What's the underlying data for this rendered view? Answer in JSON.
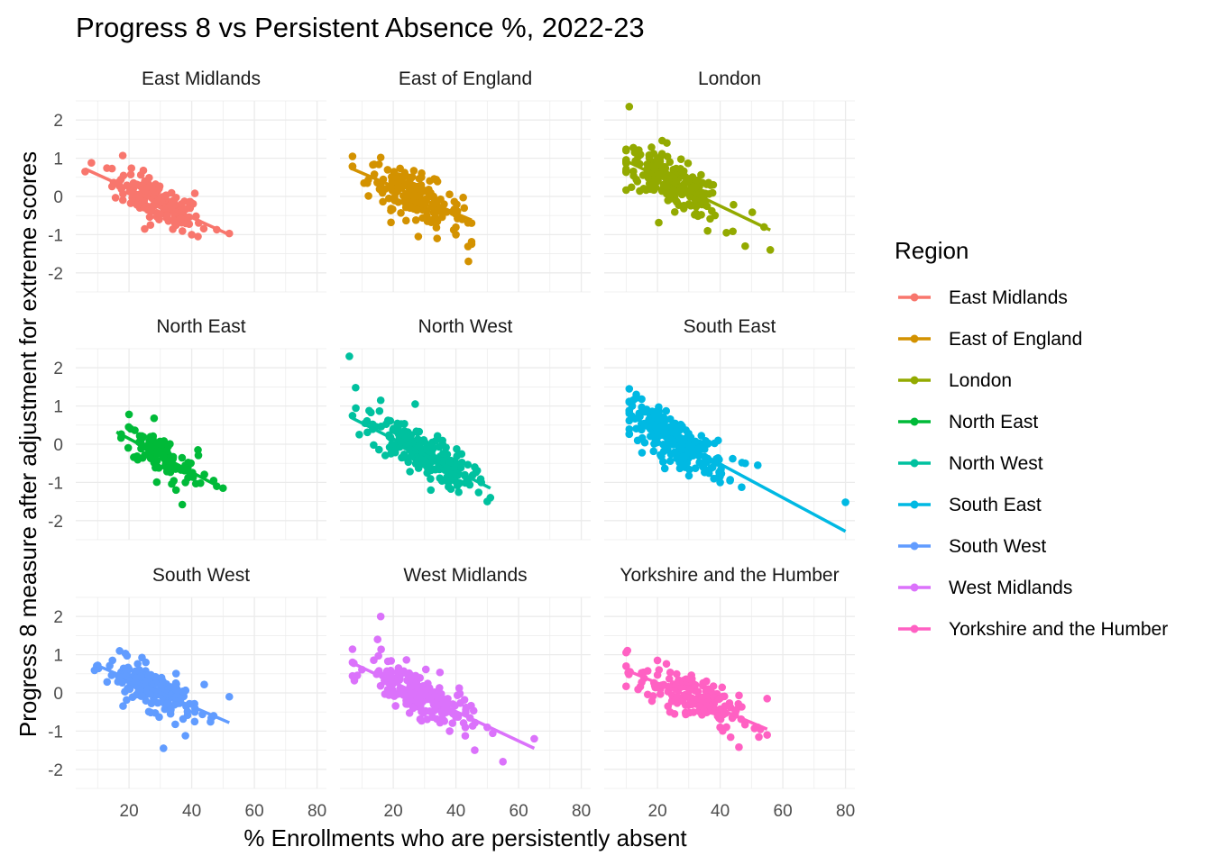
{
  "chart_data": {
    "type": "scatter",
    "title": "Progress 8 vs Persistent Absence %, 2022-23",
    "xlabel": "% Enrollments who are persistently absent",
    "ylabel": "Progress 8 measure after adjustment for extreme scores",
    "xlim": [
      3,
      83
    ],
    "ylim": [
      -2.5,
      2.5
    ],
    "x_ticks": [
      20,
      40,
      60,
      80
    ],
    "y_ticks": [
      -2,
      -1,
      0,
      1,
      2
    ],
    "grid": true,
    "legend": {
      "title": "Region",
      "placement": "right"
    },
    "panels": [
      {
        "name": "East Midlands",
        "color": "#F8766D",
        "trend": {
          "x0": 6,
          "y0": 0.72,
          "x1": 52,
          "y1": -1.0
        },
        "cloud": {
          "cx": 29,
          "cy": -0.15,
          "sx": 7,
          "sy": 0.35,
          "n": 150
        },
        "points": [
          [
            18,
            1.07
          ],
          [
            8,
            0.88
          ],
          [
            6,
            0.65
          ],
          [
            41,
            0.08
          ],
          [
            40,
            -1.0
          ],
          [
            42,
            -1.05
          ],
          [
            48,
            -0.87
          ],
          [
            52,
            -0.97
          ],
          [
            25,
            -0.85
          ],
          [
            35,
            -0.75
          ]
        ]
      },
      {
        "name": "East of England",
        "color": "#D39200",
        "trend": {
          "x0": 7,
          "y0": 0.72,
          "x1": 45,
          "y1": -0.62
        },
        "cloud": {
          "cx": 27,
          "cy": 0.0,
          "sx": 7.5,
          "sy": 0.38,
          "n": 180
        },
        "points": [
          [
            45,
            -1.25
          ],
          [
            44,
            -1.7
          ],
          [
            40,
            -1.0
          ],
          [
            28,
            -1.05
          ],
          [
            7,
            0.78
          ],
          [
            16,
            1.02
          ],
          [
            42,
            -0.6
          ],
          [
            34,
            -1.1
          ]
        ]
      },
      {
        "name": "London",
        "color": "#93AA00",
        "trend": {
          "x0": 10,
          "y0": 0.93,
          "x1": 56,
          "y1": -0.88
        },
        "cloud": {
          "cx": 25,
          "cy": 0.4,
          "sx": 8,
          "sy": 0.4,
          "n": 230
        },
        "points": [
          [
            11,
            2.35
          ],
          [
            10,
            1.2
          ],
          [
            23,
            1.4
          ],
          [
            56,
            -1.4
          ],
          [
            48,
            -1.3
          ],
          [
            54,
            -0.8
          ],
          [
            42,
            -0.95
          ],
          [
            30,
            -0.2
          ],
          [
            36,
            -0.9
          ]
        ]
      },
      {
        "name": "North East",
        "color": "#00BA38",
        "trend": {
          "x0": 16,
          "y0": 0.32,
          "x1": 50,
          "y1": -1.17
        },
        "cloud": {
          "cx": 30,
          "cy": -0.25,
          "sx": 6,
          "sy": 0.35,
          "n": 110
        },
        "points": [
          [
            20,
            0.78
          ],
          [
            28,
            0.68
          ],
          [
            37,
            -1.58
          ],
          [
            42,
            -0.15
          ],
          [
            47,
            -0.95
          ],
          [
            48,
            -1.1
          ],
          [
            50,
            -1.15
          ],
          [
            35,
            -1.2
          ],
          [
            38,
            -1.0
          ]
        ]
      },
      {
        "name": "North West",
        "color": "#00C19F",
        "trend": {
          "x0": 7,
          "y0": 0.68,
          "x1": 51,
          "y1": -1.15
        },
        "cloud": {
          "cx": 29,
          "cy": -0.3,
          "sx": 8,
          "sy": 0.38,
          "n": 220
        },
        "points": [
          [
            6,
            2.3
          ],
          [
            8,
            1.48
          ],
          [
            16,
            1.15
          ],
          [
            27,
            1.05
          ],
          [
            51,
            -1.4
          ],
          [
            50,
            -1.5
          ],
          [
            44,
            -1.0
          ],
          [
            32,
            -1.2
          ],
          [
            46,
            -0.6
          ]
        ]
      },
      {
        "name": "South East",
        "color": "#00B9E3",
        "trend": {
          "x0": 11,
          "y0": 0.76,
          "x1": 80,
          "y1": -2.28
        },
        "cloud": {
          "cx": 26,
          "cy": 0.0,
          "sx": 8,
          "sy": 0.38,
          "n": 220
        },
        "points": [
          [
            80,
            -1.52
          ],
          [
            44,
            -0.38
          ],
          [
            48,
            -0.5
          ],
          [
            52,
            -0.55
          ],
          [
            40,
            -1.0
          ],
          [
            11,
            1.45
          ],
          [
            13,
            1.2
          ],
          [
            35,
            -0.5
          ],
          [
            38,
            -0.9
          ]
        ]
      },
      {
        "name": "South West",
        "color": "#619CFF",
        "trend": {
          "x0": 9,
          "y0": 0.75,
          "x1": 52,
          "y1": -0.78
        },
        "cloud": {
          "cx": 27,
          "cy": -0.05,
          "sx": 7,
          "sy": 0.35,
          "n": 170
        },
        "points": [
          [
            17,
            1.1
          ],
          [
            31,
            -1.45
          ],
          [
            52,
            -0.1
          ],
          [
            47,
            -0.6
          ],
          [
            44,
            0.22
          ],
          [
            38,
            -1.12
          ],
          [
            41,
            -0.5
          ],
          [
            10,
            0.72
          ]
        ]
      },
      {
        "name": "West Midlands",
        "color": "#DB72FB",
        "trend": {
          "x0": 7,
          "y0": 0.78,
          "x1": 65,
          "y1": -1.45
        },
        "cloud": {
          "cx": 28,
          "cy": -0.1,
          "sx": 8,
          "sy": 0.38,
          "n": 200
        },
        "points": [
          [
            16,
            2.0
          ],
          [
            15,
            1.4
          ],
          [
            55,
            -1.8
          ],
          [
            65,
            -1.2
          ],
          [
            46,
            -1.5
          ],
          [
            7,
            0.8
          ],
          [
            43,
            -0.9
          ],
          [
            38,
            -1.0
          ],
          [
            50,
            -0.9
          ]
        ]
      },
      {
        "name": "Yorkshire and the Humber",
        "color": "#FF61C3",
        "trend": {
          "x0": 10,
          "y0": 0.6,
          "x1": 55,
          "y1": -0.95
        },
        "cloud": {
          "cx": 30,
          "cy": -0.05,
          "sx": 8,
          "sy": 0.38,
          "n": 170
        },
        "points": [
          [
            46,
            -1.42
          ],
          [
            55,
            -0.15
          ],
          [
            52,
            -0.9
          ],
          [
            55,
            -1.1
          ],
          [
            20,
            0.85
          ],
          [
            10,
            0.7
          ],
          [
            40,
            -0.9
          ],
          [
            24,
            -0.5
          ]
        ]
      }
    ]
  }
}
